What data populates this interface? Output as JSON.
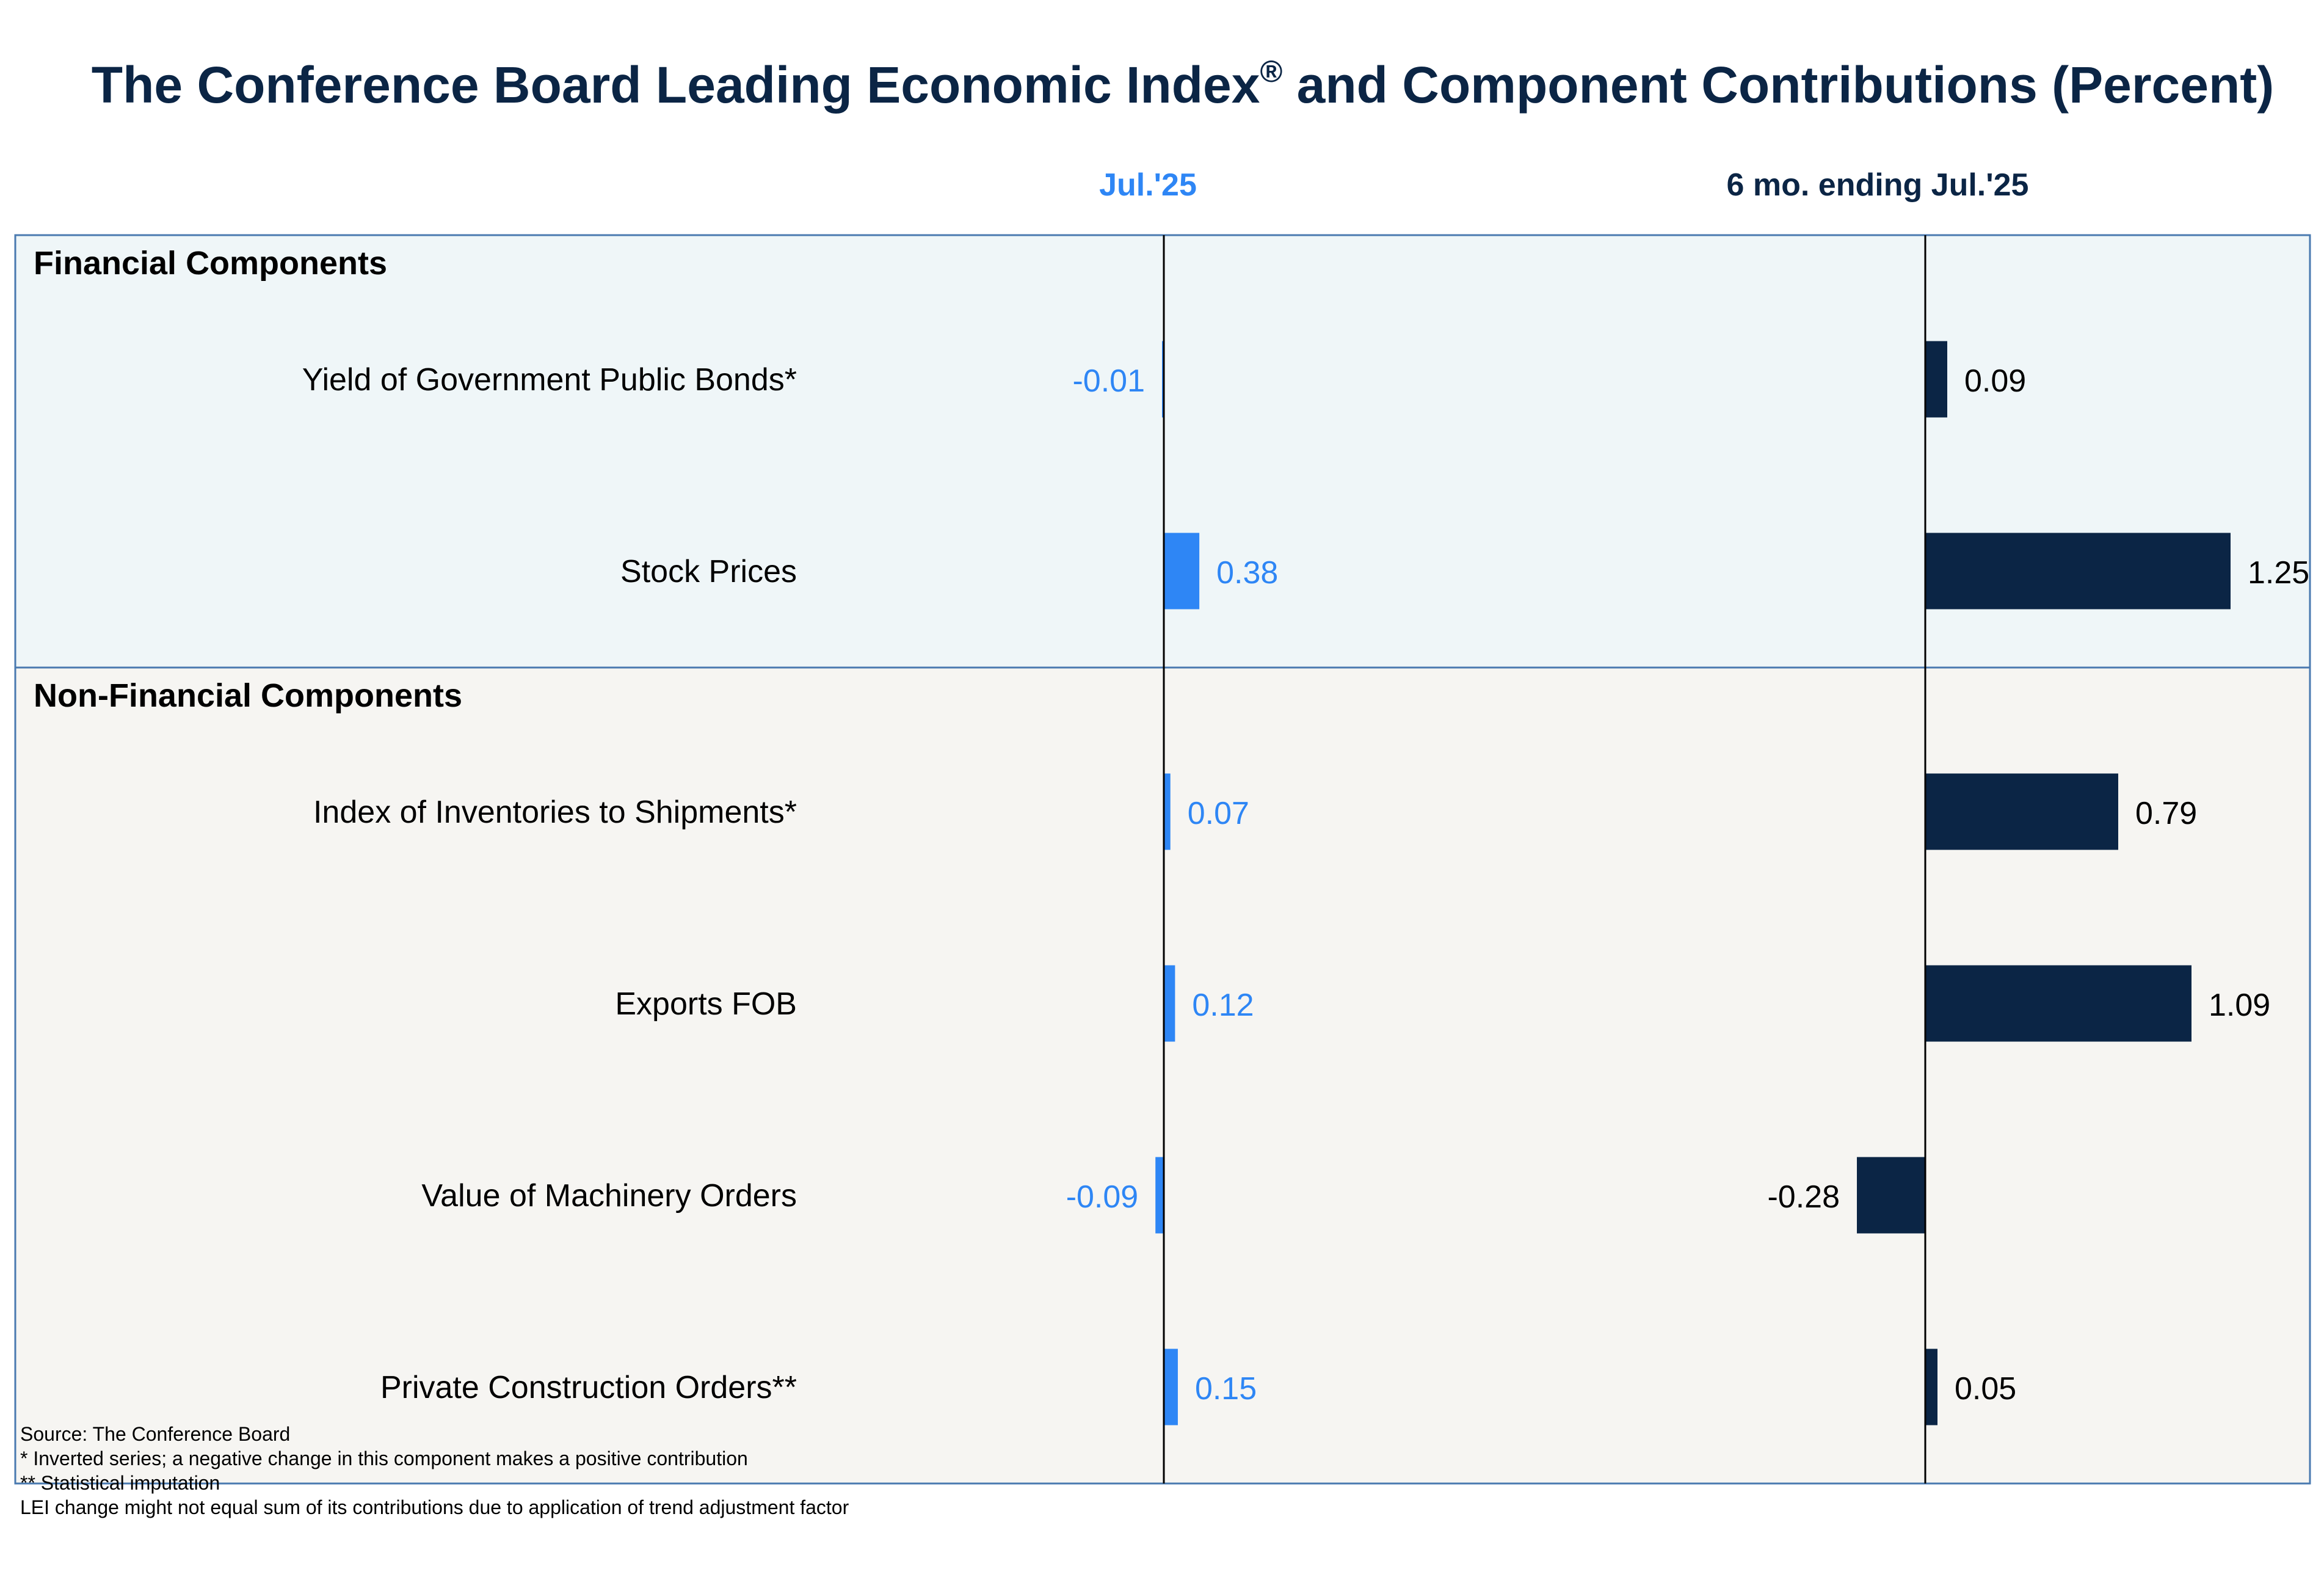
{
  "title": "The Conference Board Leading Economic Index",
  "title_sup": "®",
  "title_suffix": " and Component Contributions (Percent)",
  "colors": {
    "title": "#0b2545",
    "monthly": "#2e86f5",
    "six_month": "#0b2545",
    "financial_bg": "#eff6f8",
    "nonfinancial_bg": "#f6f5f2",
    "border": "#4a7ab0"
  },
  "chart_data": {
    "type": "bar",
    "orientation": "horizontal",
    "title": "The Conference Board Leading Economic Index® and Component Contributions (Percent)",
    "series": [
      {
        "name": "Jul.'25",
        "values": [
          -0.01,
          0.38,
          0.07,
          0.12,
          -0.09,
          0.15
        ]
      },
      {
        "name": "6 mo. ending Jul.'25",
        "values": [
          0.09,
          1.25,
          0.79,
          1.09,
          -0.28,
          0.05
        ]
      }
    ],
    "groups": [
      {
        "name": "Financial Components",
        "categories": [
          "Yield of Government Public Bonds*",
          "Stock Prices"
        ]
      },
      {
        "name": "Non-Financial Components",
        "categories": [
          "Index of Inventories to Shipments*",
          "Exports FOB",
          "Value of Machinery Orders",
          "Private Construction Orders**"
        ]
      }
    ]
  },
  "footnotes": [
    "Source: The Conference Board",
    "*  Inverted series; a negative change in this component makes a positive contribution",
    "** Statistical imputation",
    "LEI change might not equal sum of its contributions due to application of trend adjustment factor"
  ]
}
